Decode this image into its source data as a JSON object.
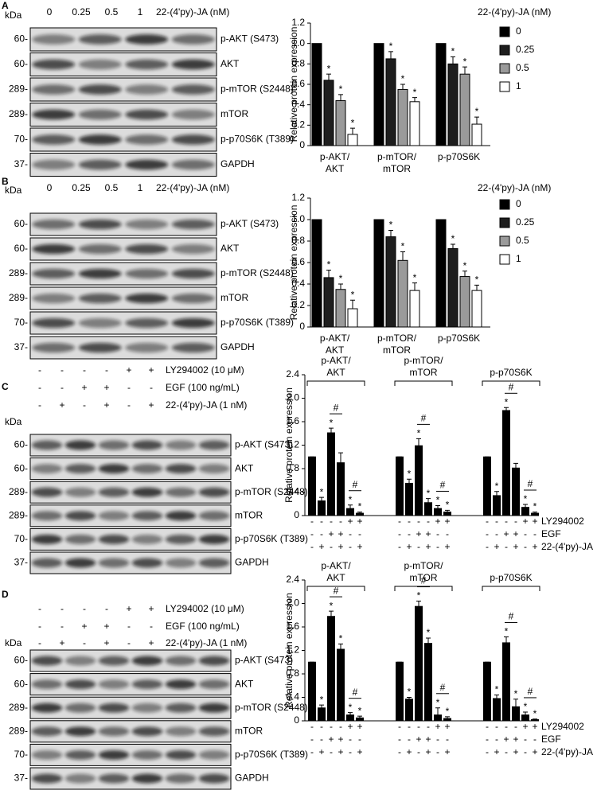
{
  "blots": [
    {
      "panel": "A",
      "kda": "kDa",
      "lanes": [
        "0",
        "0.25",
        "0.5",
        "1"
      ],
      "treatment": "22-(4'py)-JA (nM)",
      "rows": [
        {
          "mw": "60-",
          "label": "p-AKT (S473)"
        },
        {
          "mw": "60-",
          "label": "AKT"
        },
        {
          "mw": "289-",
          "label": "p-mTOR (S2448)"
        },
        {
          "mw": "289-",
          "label": "mTOR"
        },
        {
          "mw": "70-",
          "label": "p-p70S6K (T389)"
        },
        {
          "mw": "37-",
          "label": "GAPDH"
        }
      ]
    },
    {
      "panel": "B",
      "kda": "kDa",
      "lanes": [
        "0",
        "0.25",
        "0.5",
        "1"
      ],
      "treatment": "22-(4'py)-JA (nM)",
      "rows": [
        {
          "mw": "60-",
          "label": "p-AKT (S473)"
        },
        {
          "mw": "60-",
          "label": "AKT"
        },
        {
          "mw": "289-",
          "label": "p-mTOR (S2448)"
        },
        {
          "mw": "289-",
          "label": "mTOR"
        },
        {
          "mw": "70-",
          "label": "p-p70S6K (T389)"
        },
        {
          "mw": "37-",
          "label": "GAPDH"
        }
      ]
    },
    {
      "panel": "C",
      "kda": "kDa",
      "conditions": [
        {
          "label": "LY294002 (10 μM)",
          "signs": [
            "-",
            "-",
            "-",
            "-",
            "+",
            "+"
          ]
        },
        {
          "label": "EGF (100 ng/mL)",
          "signs": [
            "-",
            "-",
            "+",
            "+",
            "-",
            "-"
          ]
        },
        {
          "label": "22-(4'py)-JA (1 nM)",
          "signs": [
            "-",
            "+",
            "-",
            "+",
            "-",
            "+"
          ]
        }
      ],
      "rows": [
        {
          "mw": "60-",
          "label": "p-AKT (S473)"
        },
        {
          "mw": "60-",
          "label": "AKT"
        },
        {
          "mw": "289-",
          "label": "p-mTOR (S2448)"
        },
        {
          "mw": "289-",
          "label": "mTOR"
        },
        {
          "mw": "70-",
          "label": "p-p70S6K (T389)"
        },
        {
          "mw": "37-",
          "label": "GAPDH"
        }
      ]
    },
    {
      "panel": "D",
      "kda": "kDa",
      "conditions": [
        {
          "label": "LY294002 (10 μM)",
          "signs": [
            "-",
            "-",
            "-",
            "-",
            "+",
            "+"
          ]
        },
        {
          "label": "EGF (100 ng/mL)",
          "signs": [
            "-",
            "-",
            "+",
            "+",
            "-",
            "-"
          ]
        },
        {
          "label": "22-(4'py)-JA (1 nM)",
          "signs": [
            "-",
            "+",
            "-",
            "+",
            "-",
            "+"
          ]
        }
      ],
      "rows": [
        {
          "mw": "60-",
          "label": "p-AKT (S473)"
        },
        {
          "mw": "60-",
          "label": "AKT"
        },
        {
          "mw": "289-",
          "label": "p-mTOR (S2448)"
        },
        {
          "mw": "289-",
          "label": "mTOR"
        },
        {
          "mw": "70-",
          "label": "p-p70S6K (T389)"
        },
        {
          "mw": "37-",
          "label": "GAPDH"
        }
      ]
    }
  ],
  "chart_data": [
    {
      "type": "bar",
      "y_label": "Relative protein expression",
      "legend_title": "22-(4'py)-JA (nM)",
      "legend": "right",
      "categories": [
        [
          "p-AKT/",
          "AKT"
        ],
        [
          "p-mTOR/",
          "mTOR"
        ],
        [
          "p-p70S6K"
        ]
      ],
      "series": [
        {
          "name": "0",
          "color": "#000000",
          "values": [
            1,
            1,
            1
          ]
        },
        {
          "name": "0.25",
          "color": "#1e1e1e",
          "values": [
            0.64,
            0.85,
            0.8
          ],
          "errors": [
            0.06,
            0.07,
            0.07
          ],
          "labels": [
            "*",
            "*",
            "*"
          ]
        },
        {
          "name": "0.5",
          "color": "#9a9a9a",
          "values": [
            0.44,
            0.55,
            0.7
          ],
          "errors": [
            0.06,
            0.05,
            0.07
          ],
          "labels": [
            "*",
            "*",
            "*"
          ]
        },
        {
          "name": "1",
          "color": "#ffffff",
          "values": [
            0.11,
            0.43,
            0.21
          ],
          "errors": [
            0.06,
            0.04,
            0.07
          ],
          "labels": [
            "*",
            "*",
            "*"
          ]
        }
      ],
      "ylim": [
        0,
        1.2
      ],
      "yticks": [
        0,
        0.2,
        0.4,
        0.6,
        0.8,
        {
          "value": 1,
          "label": "1.0"
        },
        1.2
      ]
    },
    {
      "type": "bar",
      "y_label": "Relative protein expression",
      "legend_title": "22-(4'py)-JA (nM)",
      "legend": "right",
      "categories": [
        [
          "p-AKT/",
          "AKT"
        ],
        [
          "p-mTOR/",
          "mTOR"
        ],
        [
          "p-p70S6K"
        ]
      ],
      "series": [
        {
          "name": "0",
          "color": "#000000",
          "values": [
            1,
            1,
            1
          ]
        },
        {
          "name": "0.25",
          "color": "#1e1e1e",
          "values": [
            0.46,
            0.84,
            0.73
          ],
          "errors": [
            0.07,
            0.06,
            0.04
          ],
          "labels": [
            "*",
            "*",
            "*"
          ]
        },
        {
          "name": "0.5",
          "color": "#9a9a9a",
          "values": [
            0.35,
            0.62,
            0.47
          ],
          "errors": [
            0.05,
            0.08,
            0.05
          ],
          "labels": [
            "*",
            "*",
            "*"
          ]
        },
        {
          "name": "1",
          "color": "#ffffff",
          "values": [
            0.17,
            0.34,
            0.34
          ],
          "errors": [
            0.08,
            0.07,
            0.05
          ],
          "labels": [
            "*",
            "*",
            "*"
          ]
        }
      ],
      "ylim": [
        0,
        1.2
      ],
      "yticks": [
        0,
        0.2,
        0.4,
        0.6,
        0.8,
        {
          "value": 1,
          "label": "1.0"
        },
        1.2
      ]
    },
    {
      "type": "bar",
      "y_label": "Relative protein expression",
      "color": "#000000",
      "hash": "#",
      "groups": [
        {
          "title": [
            "p-AKT/",
            "AKT"
          ],
          "values": [
            1,
            0.25,
            1.41,
            0.9,
            0.12,
            0.04
          ],
          "errors": [
            0,
            0.06,
            0.08,
            0.17,
            0.06,
            0.02
          ],
          "labels": [
            null,
            "*",
            "*",
            null,
            "*",
            "*"
          ]
        },
        {
          "title": [
            "p-mTOR/",
            "mTOR"
          ],
          "values": [
            1,
            0.55,
            1.19,
            0.22,
            0.12,
            0.06
          ],
          "errors": [
            0,
            0.07,
            0.12,
            0.07,
            0.05,
            0.03
          ],
          "labels": [
            null,
            "*",
            "*",
            "*",
            "*",
            "*"
          ]
        },
        {
          "title": [
            "p-p70S6K"
          ],
          "values": [
            1,
            0.34,
            1.79,
            0.81,
            0.14,
            0.04
          ],
          "errors": [
            0,
            0.07,
            0.05,
            0.08,
            0.05,
            0.02
          ],
          "labels": [
            null,
            "*",
            "*",
            null,
            "*",
            "*"
          ]
        }
      ],
      "conditions": [
        {
          "name": "LY294002",
          "signs": [
            "-",
            "-",
            "-",
            "-",
            "+",
            "+"
          ]
        },
        {
          "name": "EGF",
          "signs": [
            "-",
            "-",
            "+",
            "+",
            "-",
            "-"
          ]
        },
        {
          "name": "22-(4'py)-JA",
          "signs": [
            "-",
            "+",
            "-",
            "+",
            "-",
            "+"
          ]
        }
      ],
      "ylim": [
        0,
        2.4
      ],
      "yticks": [
        0,
        0.4,
        0.8,
        1.2,
        1.6,
        {
          "value": 2,
          "label": "2.0"
        },
        2.4
      ]
    },
    {
      "type": "bar",
      "y_label": "Relative protein expression",
      "color": "#000000",
      "hash": "#",
      "groups": [
        {
          "title": [
            "p-AKT/",
            "AKT"
          ],
          "values": [
            1,
            0.22,
            1.78,
            1.22,
            0.1,
            0.05
          ],
          "errors": [
            0,
            0.05,
            0.09,
            0.09,
            0.04,
            0.03
          ],
          "labels": [
            null,
            "*",
            "*",
            "*",
            "*",
            "*"
          ]
        },
        {
          "title": [
            "p-mTOR/",
            "mTOR"
          ],
          "values": [
            1,
            0.37,
            1.95,
            1.32,
            0.1,
            0.04
          ],
          "errors": [
            0,
            0.03,
            0.09,
            0.09,
            0.12,
            0.03
          ],
          "labels": [
            null,
            "*",
            "*",
            "*",
            "*",
            "*"
          ]
        },
        {
          "title": [
            "p-p70S6K"
          ],
          "values": [
            1,
            0.38,
            1.33,
            0.24,
            0.1,
            0.02
          ],
          "errors": [
            0,
            0.06,
            0.1,
            0.13,
            0.05,
            0.01
          ],
          "labels": [
            null,
            "*",
            "*",
            "*",
            "*",
            "*"
          ]
        }
      ],
      "conditions": [
        {
          "name": "LY294002",
          "signs": [
            "-",
            "-",
            "-",
            "-",
            "+",
            "+"
          ]
        },
        {
          "name": "EGF",
          "signs": [
            "-",
            "-",
            "+",
            "+",
            "-",
            "-"
          ]
        },
        {
          "name": "22-(4'py)-JA",
          "signs": [
            "-",
            "+",
            "-",
            "+",
            "-",
            "+"
          ]
        }
      ],
      "ylim": [
        0,
        2.4
      ],
      "yticks": [
        0,
        0.4,
        0.8,
        1.2,
        1.6,
        {
          "value": 2,
          "label": "2.0"
        },
        2.4
      ]
    }
  ]
}
